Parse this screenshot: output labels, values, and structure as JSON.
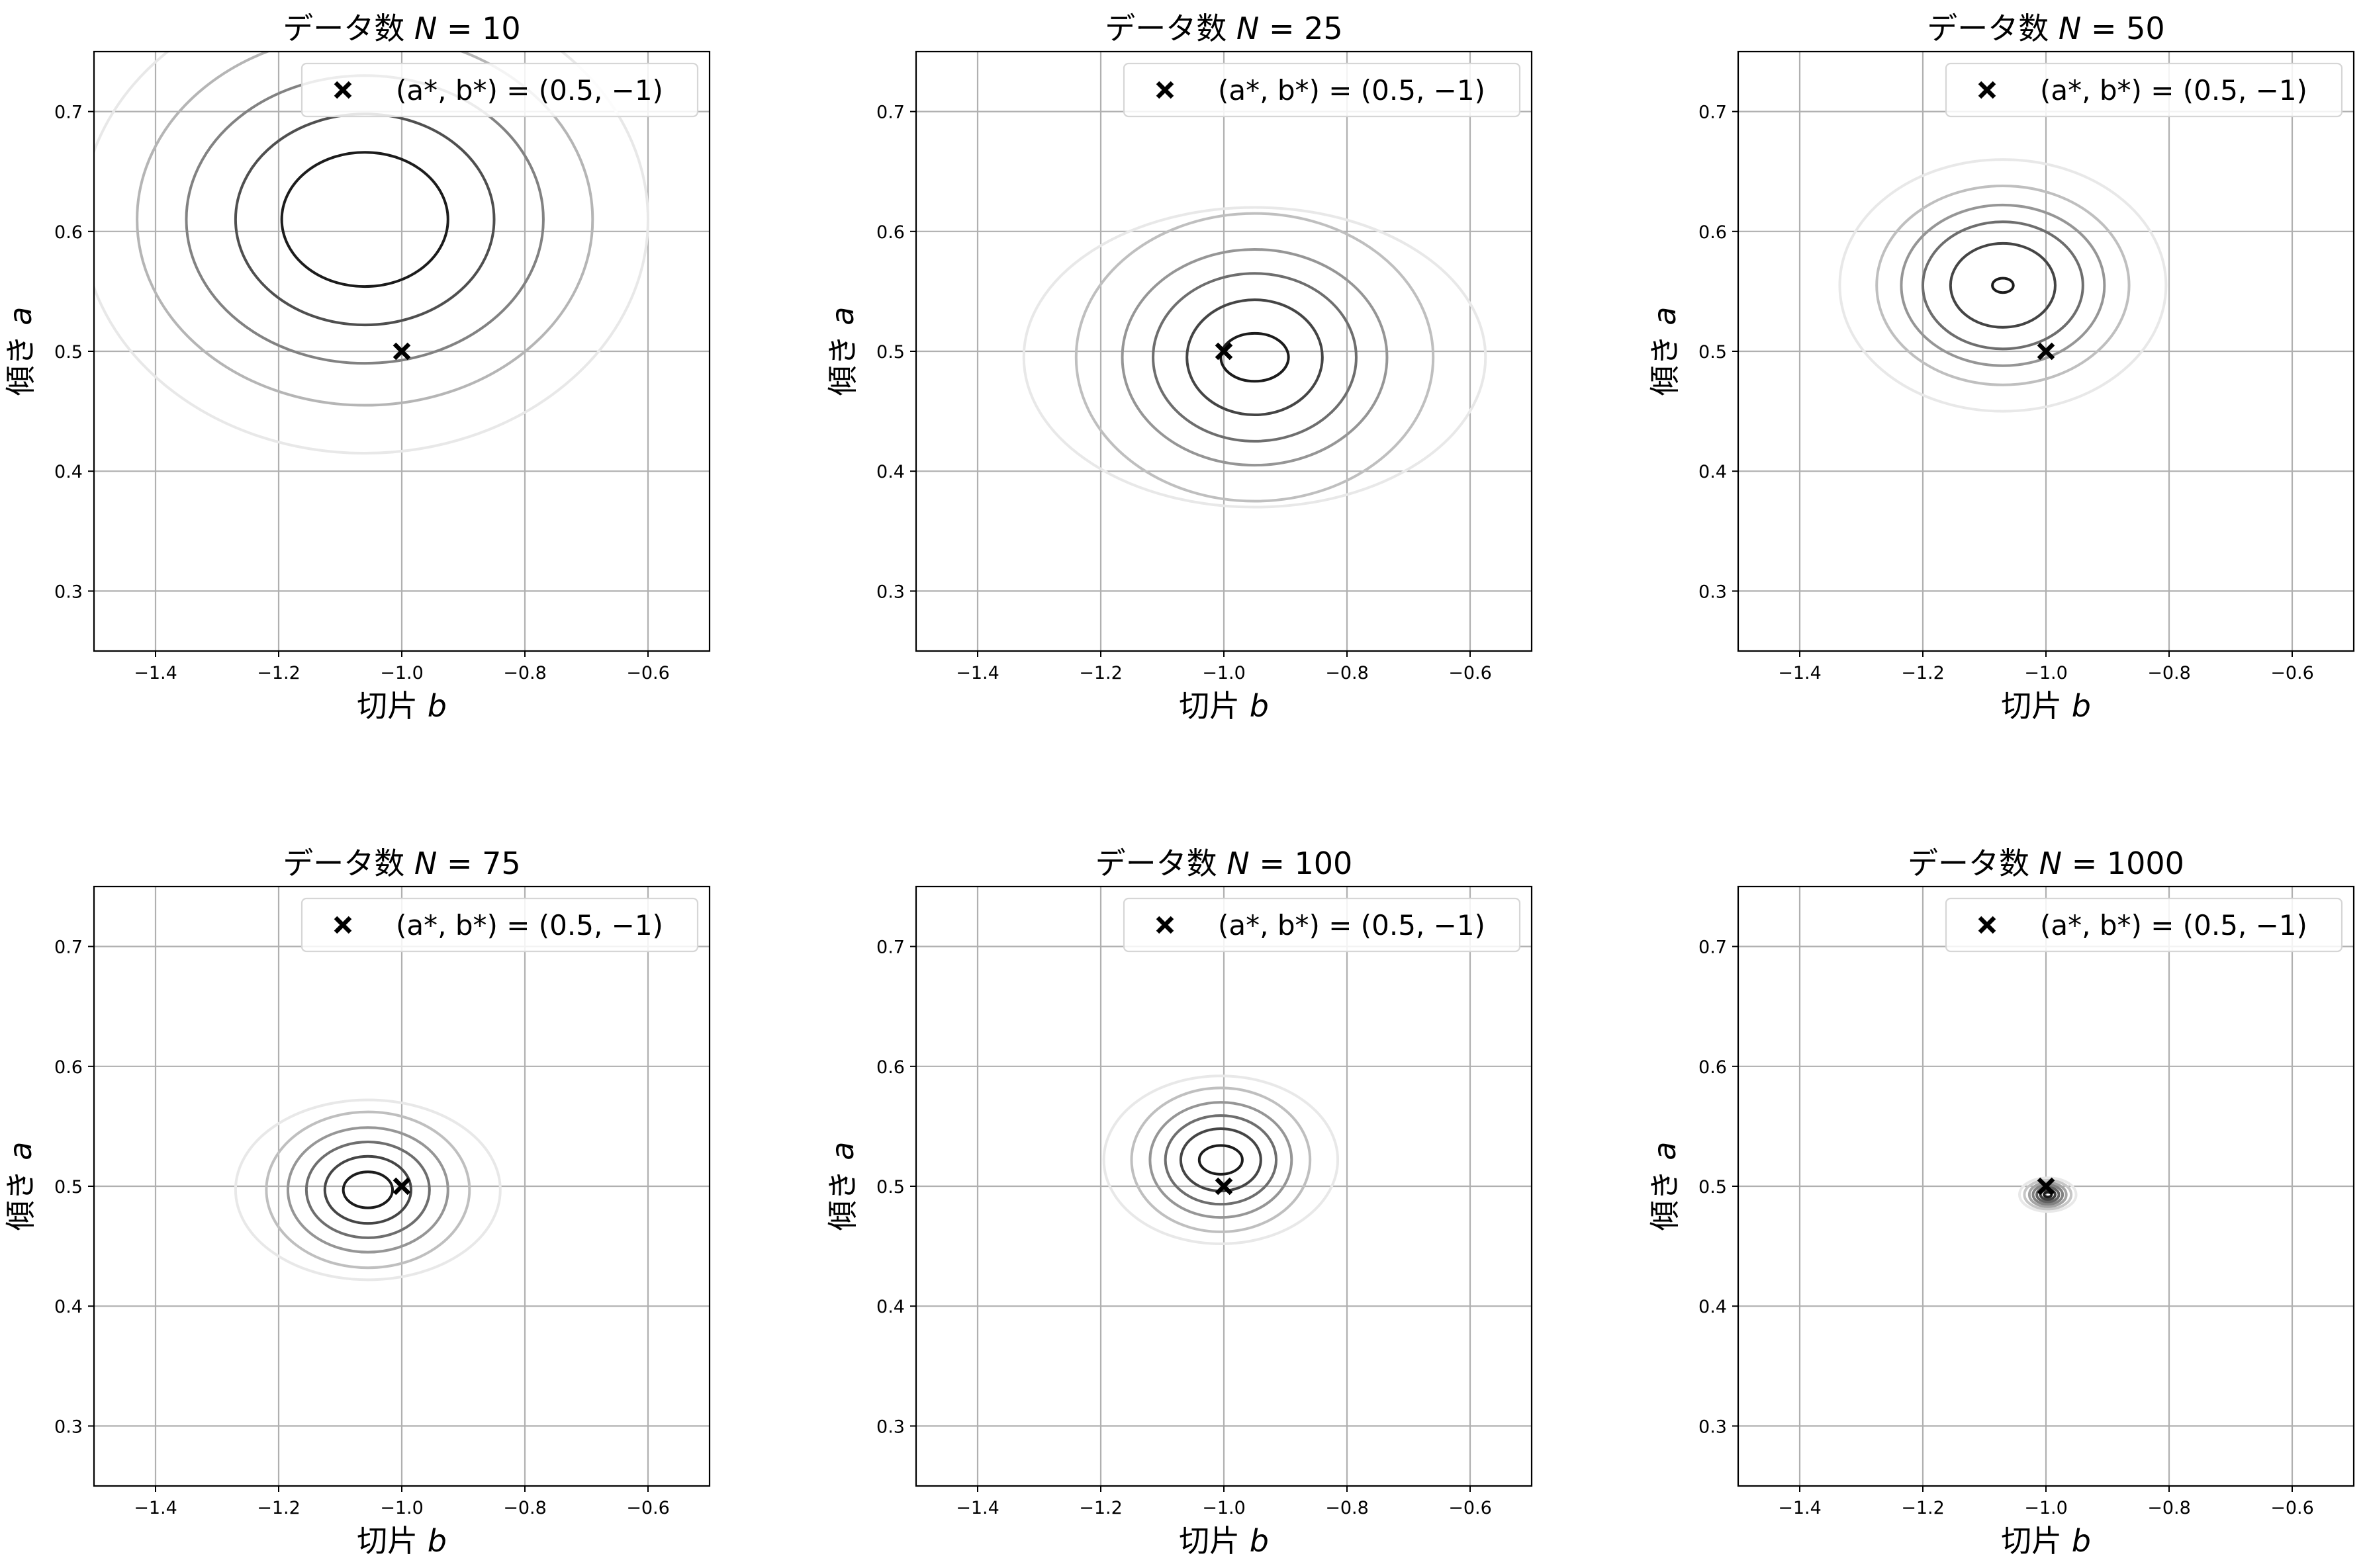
{
  "chart_data": [
    {
      "type": "contour",
      "title_prefix": "データ数",
      "title_var": "N",
      "n": "10",
      "xlabel_text": "切片",
      "xlabel_var": "b",
      "ylabel_text": "傾き",
      "ylabel_var": "a",
      "xlim": [
        -1.5,
        -0.5
      ],
      "ylim": [
        0.25,
        0.75
      ],
      "xticks": [
        -1.4,
        -1.2,
        -1.0,
        -0.8,
        -0.6
      ],
      "yticks": [
        0.3,
        0.4,
        0.5,
        0.6,
        0.7
      ],
      "xtick_labels": [
        "−1.4",
        "−1.2",
        "−1.0",
        "−0.8",
        "−0.6"
      ],
      "ytick_labels": [
        "0.3",
        "0.4",
        "0.5",
        "0.6",
        "0.7"
      ],
      "grid": true,
      "legend_location": "top-right",
      "legend_label": "(a*, b*) = (0.5, −1)",
      "true_point": {
        "b": -1.0,
        "a": 0.5
      },
      "posterior_mean": {
        "b": -1.06,
        "a": 0.61
      },
      "contour_half_widths": [
        {
          "db": 0.135,
          "da": 0.056
        },
        {
          "db": 0.21,
          "da": 0.088
        },
        {
          "db": 0.29,
          "da": 0.12
        },
        {
          "db": 0.37,
          "da": 0.155
        },
        {
          "db": 0.46,
          "da": 0.195
        }
      ]
    },
    {
      "type": "contour",
      "title_prefix": "データ数",
      "title_var": "N",
      "n": "25",
      "xlabel_text": "切片",
      "xlabel_var": "b",
      "ylabel_text": "傾き",
      "ylabel_var": "a",
      "xlim": [
        -1.5,
        -0.5
      ],
      "ylim": [
        0.25,
        0.75
      ],
      "xticks": [
        -1.4,
        -1.2,
        -1.0,
        -0.8,
        -0.6
      ],
      "yticks": [
        0.3,
        0.4,
        0.5,
        0.6,
        0.7
      ],
      "xtick_labels": [
        "−1.4",
        "−1.2",
        "−1.0",
        "−0.8",
        "−0.6"
      ],
      "ytick_labels": [
        "0.3",
        "0.4",
        "0.5",
        "0.6",
        "0.7"
      ],
      "grid": true,
      "legend_location": "top-right",
      "legend_label": "(a*, b*) = (0.5, −1)",
      "true_point": {
        "b": -1.0,
        "a": 0.5
      },
      "posterior_mean": {
        "b": -0.95,
        "a": 0.495
      },
      "contour_half_widths": [
        {
          "db": 0.055,
          "da": 0.02
        },
        {
          "db": 0.11,
          "da": 0.048
        },
        {
          "db": 0.165,
          "da": 0.07
        },
        {
          "db": 0.215,
          "da": 0.09
        },
        {
          "db": 0.29,
          "da": 0.12
        },
        {
          "db": 0.375,
          "da": 0.125
        }
      ]
    },
    {
      "type": "contour",
      "title_prefix": "データ数",
      "title_var": "N",
      "n": "50",
      "xlabel_text": "切片",
      "xlabel_var": "b",
      "ylabel_text": "傾き",
      "ylabel_var": "a",
      "xlim": [
        -1.5,
        -0.5
      ],
      "ylim": [
        0.25,
        0.75
      ],
      "xticks": [
        -1.4,
        -1.2,
        -1.0,
        -0.8,
        -0.6
      ],
      "yticks": [
        0.3,
        0.4,
        0.5,
        0.6,
        0.7
      ],
      "xtick_labels": [
        "−1.4",
        "−1.2",
        "−1.0",
        "−0.8",
        "−0.6"
      ],
      "ytick_labels": [
        "0.3",
        "0.4",
        "0.5",
        "0.6",
        "0.7"
      ],
      "grid": true,
      "legend_location": "top-right",
      "legend_label": "(a*, b*) = (0.5, −1)",
      "true_point": {
        "b": -1.0,
        "a": 0.5
      },
      "posterior_mean": {
        "b": -1.07,
        "a": 0.555
      },
      "contour_half_widths": [
        {
          "db": 0.017,
          "da": 0.006
        },
        {
          "db": 0.085,
          "da": 0.035
        },
        {
          "db": 0.13,
          "da": 0.053
        },
        {
          "db": 0.165,
          "da": 0.067
        },
        {
          "db": 0.205,
          "da": 0.083
        },
        {
          "db": 0.265,
          "da": 0.105
        }
      ]
    },
    {
      "type": "contour",
      "title_prefix": "データ数",
      "title_var": "N",
      "n": "75",
      "xlabel_text": "切片",
      "xlabel_var": "b",
      "ylabel_text": "傾き",
      "ylabel_var": "a",
      "xlim": [
        -1.5,
        -0.5
      ],
      "ylim": [
        0.25,
        0.75
      ],
      "xticks": [
        -1.4,
        -1.2,
        -1.0,
        -0.8,
        -0.6
      ],
      "yticks": [
        0.3,
        0.4,
        0.5,
        0.6,
        0.7
      ],
      "xtick_labels": [
        "−1.4",
        "−1.2",
        "−1.0",
        "−0.8",
        "−0.6"
      ],
      "ytick_labels": [
        "0.3",
        "0.4",
        "0.5",
        "0.6",
        "0.7"
      ],
      "grid": true,
      "legend_location": "top-right",
      "legend_label": "(a*, b*) = (0.5, −1)",
      "true_point": {
        "b": -1.0,
        "a": 0.5
      },
      "posterior_mean": {
        "b": -1.055,
        "a": 0.497
      },
      "contour_half_widths": [
        {
          "db": 0.04,
          "da": 0.015
        },
        {
          "db": 0.07,
          "da": 0.028
        },
        {
          "db": 0.1,
          "da": 0.04
        },
        {
          "db": 0.13,
          "da": 0.052
        },
        {
          "db": 0.165,
          "da": 0.065
        },
        {
          "db": 0.215,
          "da": 0.075
        }
      ]
    },
    {
      "type": "contour",
      "title_prefix": "データ数",
      "title_var": "N",
      "n": "100",
      "xlabel_text": "切片",
      "xlabel_var": "b",
      "ylabel_text": "傾き",
      "ylabel_var": "a",
      "xlim": [
        -1.5,
        -0.5
      ],
      "ylim": [
        0.25,
        0.75
      ],
      "xticks": [
        -1.4,
        -1.2,
        -1.0,
        -0.8,
        -0.6
      ],
      "yticks": [
        0.3,
        0.4,
        0.5,
        0.6,
        0.7
      ],
      "xtick_labels": [
        "−1.4",
        "−1.2",
        "−1.0",
        "−0.8",
        "−0.6"
      ],
      "ytick_labels": [
        "0.3",
        "0.4",
        "0.5",
        "0.6",
        "0.7"
      ],
      "grid": true,
      "legend_location": "top-right",
      "legend_label": "(a*, b*) = (0.5, −1)",
      "true_point": {
        "b": -1.0,
        "a": 0.5
      },
      "posterior_mean": {
        "b": -1.005,
        "a": 0.522
      },
      "contour_half_widths": [
        {
          "db": 0.035,
          "da": 0.012
        },
        {
          "db": 0.065,
          "da": 0.026
        },
        {
          "db": 0.09,
          "da": 0.037
        },
        {
          "db": 0.115,
          "da": 0.048
        },
        {
          "db": 0.145,
          "da": 0.06
        },
        {
          "db": 0.19,
          "da": 0.07
        }
      ]
    },
    {
      "type": "contour",
      "title_prefix": "データ数",
      "title_var": "N",
      "n": "1000",
      "xlabel_text": "切片",
      "xlabel_var": "b",
      "ylabel_text": "傾き",
      "ylabel_var": "a",
      "xlim": [
        -1.5,
        -0.5
      ],
      "ylim": [
        0.25,
        0.75
      ],
      "xticks": [
        -1.4,
        -1.2,
        -1.0,
        -0.8,
        -0.6
      ],
      "yticks": [
        0.3,
        0.4,
        0.5,
        0.6,
        0.7
      ],
      "xtick_labels": [
        "−1.4",
        "−1.2",
        "−1.0",
        "−0.8",
        "−0.6"
      ],
      "ytick_labels": [
        "0.3",
        "0.4",
        "0.5",
        "0.6",
        "0.7"
      ],
      "grid": true,
      "legend_location": "top-right",
      "legend_label": "(a*, b*) = (0.5, −1)",
      "true_point": {
        "b": -1.0,
        "a": 0.5
      },
      "posterior_mean": {
        "b": -0.997,
        "a": 0.493
      },
      "contour_half_widths": [
        {
          "db": 0.006,
          "da": 0.002
        },
        {
          "db": 0.012,
          "da": 0.004
        },
        {
          "db": 0.018,
          "da": 0.006
        },
        {
          "db": 0.024,
          "da": 0.008
        },
        {
          "db": 0.03,
          "da": 0.01
        },
        {
          "db": 0.038,
          "da": 0.012
        },
        {
          "db": 0.046,
          "da": 0.014
        }
      ]
    }
  ]
}
